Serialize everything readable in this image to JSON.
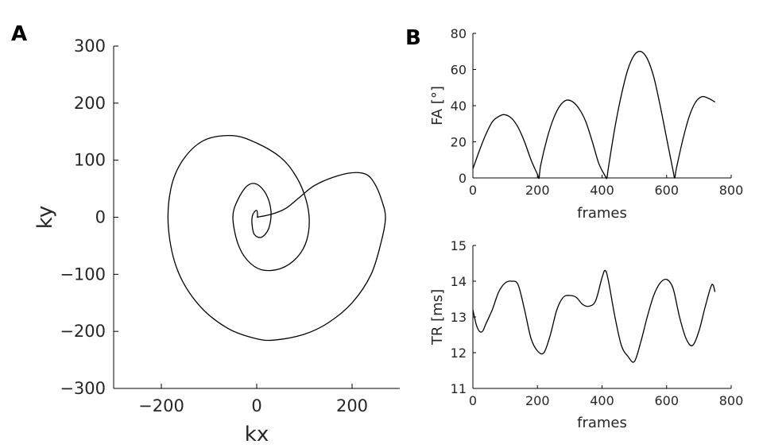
{
  "panels": {
    "A": "A",
    "B": "B"
  },
  "chart_data": [
    {
      "panel": "A",
      "type": "line",
      "title": "",
      "xlabel": "kx",
      "ylabel": "ky",
      "xlim": [
        -300,
        300
      ],
      "ylim": [
        -300,
        300
      ],
      "xticks": [
        -200,
        0,
        200
      ],
      "yticks": [
        -300,
        -200,
        -100,
        0,
        100,
        200,
        300
      ],
      "grid": false,
      "series": [
        {
          "x": [
            0,
            30,
            60,
            90,
            120,
            160,
            200,
            230,
            248,
            262,
            270,
            262,
            240,
            200,
            150,
            100,
            40,
            0,
            -60,
            -120,
            -165,
            -185,
            -180,
            -155,
            -110,
            -50,
            0,
            50,
            80,
            100,
            110,
            105,
            85,
            50,
            10,
            -20,
            -40,
            -50,
            -40,
            -20,
            0,
            20,
            30,
            25,
            10,
            -5,
            -10,
            -8,
            0,
            2
          ],
          "y": [
            0,
            5,
            15,
            35,
            55,
            70,
            78,
            75,
            58,
            30,
            0,
            -40,
            -100,
            -150,
            -185,
            -205,
            -215,
            -213,
            -195,
            -155,
            -95,
            -20,
            50,
            100,
            135,
            143,
            130,
            105,
            75,
            40,
            0,
            -40,
            -70,
            -90,
            -92,
            -75,
            -45,
            0,
            30,
            55,
            58,
            40,
            10,
            -20,
            -35,
            -30,
            -10,
            5,
            12,
            0
          ]
        }
      ]
    },
    {
      "panel": "B-top",
      "type": "line",
      "title": "",
      "xlabel": "frames",
      "ylabel": "FA [°]",
      "xlim": [
        0,
        800
      ],
      "ylim": [
        0,
        80
      ],
      "xticks": [
        0,
        200,
        400,
        600,
        800
      ],
      "yticks": [
        0,
        20,
        40,
        60,
        80
      ],
      "grid": false,
      "series": [
        {
          "x": [
            0,
            20,
            40,
            60,
            80,
            98,
            120,
            140,
            160,
            180,
            200,
            205,
            210,
            230,
            250,
            270,
            290,
            310,
            330,
            350,
            370,
            390,
            410,
            415,
            420,
            440,
            460,
            480,
            500,
            520,
            540,
            560,
            580,
            600,
            620,
            625,
            630,
            650,
            670,
            690,
            710,
            730,
            750
          ],
          "y": [
            5,
            15,
            24,
            31,
            34,
            35,
            33,
            28,
            20,
            10,
            2,
            0,
            7,
            22,
            33,
            40,
            43,
            42,
            38,
            31,
            20,
            8,
            1,
            0,
            6,
            28,
            46,
            60,
            68,
            70,
            66,
            56,
            40,
            22,
            4,
            0,
            5,
            21,
            34,
            42,
            45,
            44,
            42
          ]
        }
      ]
    },
    {
      "panel": "B-bottom",
      "type": "line",
      "title": "",
      "xlabel": "frames",
      "ylabel": "TR [ms]",
      "xlim": [
        0,
        800
      ],
      "ylim": [
        11,
        15
      ],
      "xticks": [
        0,
        200,
        400,
        600,
        800
      ],
      "yticks": [
        11,
        12,
        13,
        14,
        15
      ],
      "grid": false,
      "series": [
        {
          "x": [
            0,
            10,
            20,
            30,
            40,
            60,
            80,
            100,
            120,
            140,
            160,
            180,
            200,
            220,
            240,
            260,
            280,
            300,
            320,
            340,
            360,
            380,
            400,
            410,
            420,
            440,
            460,
            480,
            500,
            520,
            540,
            560,
            580,
            600,
            620,
            640,
            660,
            680,
            700,
            720,
            740,
            750
          ],
          "y": [
            13.2,
            12.8,
            12.6,
            12.6,
            12.8,
            13.2,
            13.7,
            13.95,
            14.0,
            13.9,
            13.2,
            12.4,
            12.05,
            12.0,
            12.5,
            13.2,
            13.55,
            13.6,
            13.55,
            13.35,
            13.3,
            13.45,
            14.1,
            14.3,
            14.0,
            13.0,
            12.2,
            11.9,
            11.75,
            12.3,
            13.0,
            13.6,
            13.95,
            14.05,
            13.8,
            13.0,
            12.4,
            12.2,
            12.6,
            13.3,
            13.9,
            13.7
          ]
        }
      ]
    }
  ]
}
